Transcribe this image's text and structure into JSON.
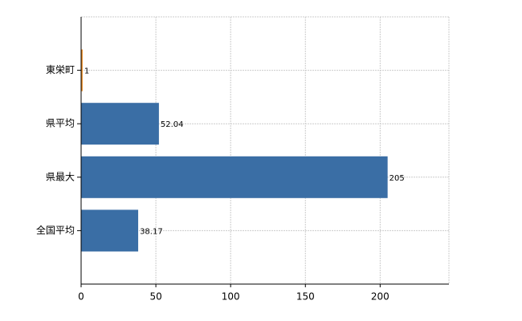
{
  "chart_data": {
    "type": "bar",
    "orientation": "horizontal",
    "categories": [
      "東栄町",
      "県平均",
      "県最大",
      "全国平均"
    ],
    "values": [
      1,
      52.04,
      205,
      38.17
    ],
    "colors": [
      "#e8861a",
      "#3a6ea5",
      "#3a6ea5",
      "#3a6ea5"
    ],
    "xlim": [
      0,
      246
    ],
    "xticks": [
      0,
      50,
      100,
      150,
      200
    ],
    "grid": true
  }
}
